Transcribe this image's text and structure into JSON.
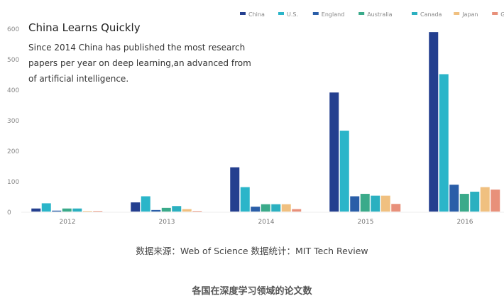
{
  "chart_data": {
    "type": "bar",
    "title": "China Learns Quickly",
    "subtitle": "Since 2014 China has published the most research papers per year on deep learning,an advanced from of artificial intelligence.",
    "categories": [
      "2012",
      "2013",
      "2014",
      "2015",
      "2016"
    ],
    "ylim": [
      0,
      600
    ],
    "yticks": [
      0,
      100,
      200,
      300,
      400,
      500,
      600
    ],
    "grid": false,
    "legend": "top-right",
    "series": [
      {
        "name": "China",
        "color": "#243f8f",
        "values": [
          10,
          30,
          145,
          390,
          588
        ]
      },
      {
        "name": "U.S.",
        "color": "#2bb5c9",
        "values": [
          27,
          50,
          80,
          265,
          450
        ]
      },
      {
        "name": "England",
        "color": "#2a5ea8",
        "values": [
          3,
          5,
          16,
          50,
          88
        ]
      },
      {
        "name": "Australia",
        "color": "#3aaa8a",
        "values": [
          10,
          12,
          24,
          58,
          58
        ]
      },
      {
        "name": "Canada",
        "color": "#2bb0c0",
        "values": [
          10,
          18,
          24,
          52,
          65
        ]
      },
      {
        "name": "Japan",
        "color": "#f0c080",
        "values": [
          2,
          8,
          24,
          52,
          80
        ]
      },
      {
        "name": "Germany",
        "color": "#e8907a",
        "values": [
          2,
          2,
          8,
          25,
          72
        ]
      }
    ]
  },
  "source": "数据来源：Web of Science 数据统计：MIT Tech Review",
  "caption": "各国在深度学习领域的论文数"
}
